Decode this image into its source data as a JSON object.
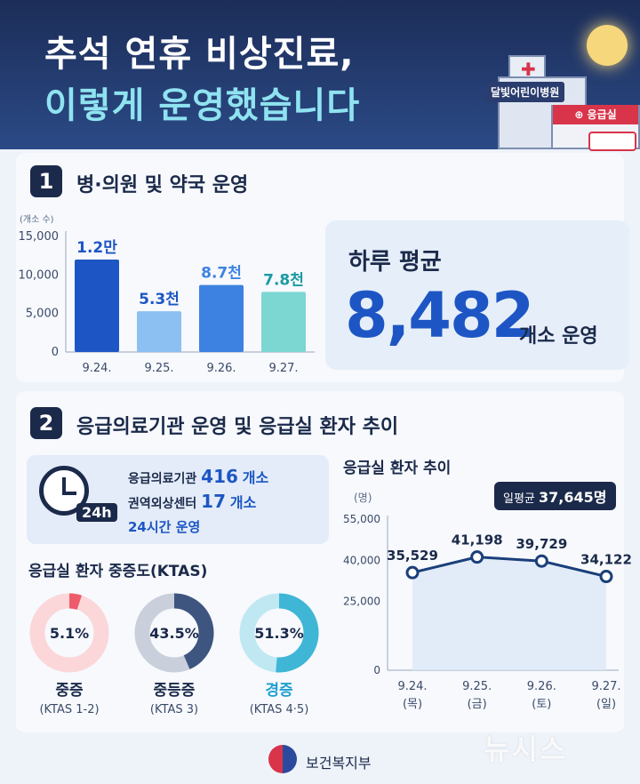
{
  "header": {
    "title_line1": "추석 연휴 비상진료,",
    "title_line2": "이렇게 운영했습니다",
    "hospital_sign": "달빛어린이병원",
    "er_sign": "⊕ 응급실"
  },
  "section1": {
    "number": "1",
    "title": "병·의원 및 약국 운영",
    "daily_avg_label": "하루 평균",
    "daily_avg_value": "8,482",
    "daily_avg_unit": "개소 운영"
  },
  "section2": {
    "number": "2",
    "title": "응급의료기관 운영 및 응급실 환자 추이",
    "info": {
      "row1_label": "응급의료기관",
      "row1_value": "416",
      "row1_unit": "개소",
      "row2_label": "권역외상센터",
      "row2_value": "17",
      "row2_unit": "개소",
      "row3": "24시간 운영",
      "clock_tag": "24h"
    },
    "ktas_title": "응급실 환자 중증도(KTAS)",
    "er_trend_title": "응급실 환자 추이",
    "er_avg_label": "일평균",
    "er_avg_value": "37,645명"
  },
  "chart_data": [
    {
      "type": "bar",
      "ylabel": "(개소 수)",
      "categories": [
        "9.24.",
        "9.25.",
        "9.26.",
        "9.27."
      ],
      "values": [
        12000,
        5300,
        8700,
        7800
      ],
      "data_labels": [
        "1.2만",
        "5.3천",
        "8.7천",
        "7.8천"
      ],
      "ylim": [
        0,
        15000
      ],
      "yticks": [
        0,
        5000,
        10000,
        15000
      ],
      "ytick_labels": [
        "0",
        "5,000",
        "10,000",
        "15,000"
      ],
      "colors": [
        "#1d56c4",
        "#8cc0f2",
        "#3d82e0",
        "#7cd6d2"
      ]
    },
    {
      "type": "pie",
      "subtype": "donut",
      "slices": [
        {
          "name": "중증",
          "sublabel": "(KTAS 1-2)",
          "value": 5.1,
          "label": "5.1%",
          "color": "#ee5b6a",
          "track": "#fbd7da"
        },
        {
          "name": "중등증",
          "sublabel": "(KTAS 3)",
          "value": 43.5,
          "label": "43.5%",
          "color": "#3e5580",
          "track": "#c9cfdb"
        },
        {
          "name": "경증",
          "sublabel": "(KTAS 4·5)",
          "value": 51.3,
          "label": "51.3%",
          "color": "#3fb6d6",
          "track": "#bfe8f2"
        }
      ]
    },
    {
      "type": "line",
      "ylabel": "(명)",
      "categories": [
        "9.24.",
        "9.25.",
        "9.26.",
        "9.27."
      ],
      "category_sublabels": [
        "(목)",
        "(금)",
        "(토)",
        "(일)"
      ],
      "values": [
        35529,
        41198,
        39729,
        34122
      ],
      "data_labels": [
        "35,529",
        "41,198",
        "39,729",
        "34,122"
      ],
      "ylim": [
        0,
        55000
      ],
      "yticks": [
        0,
        25000,
        40000,
        55000
      ],
      "ytick_labels": [
        "0",
        "25,000",
        "40,000",
        "55,000"
      ],
      "color": "#1b3f7a"
    }
  ],
  "footer": {
    "ministry": "보건복지부",
    "watermark": "뉴시스"
  }
}
